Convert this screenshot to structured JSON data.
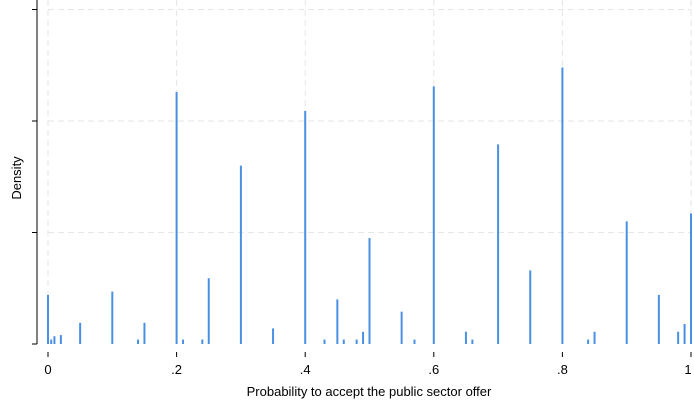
{
  "chart_data": {
    "type": "bar",
    "title": "",
    "xlabel": "Probability to accept the public sector offer",
    "ylabel": "Density",
    "xlim": [
      0,
      1
    ],
    "ylim": [
      0,
      30
    ],
    "x_ticks": [
      {
        "value": 0,
        "label": "0"
      },
      {
        "value": 0.2,
        "label": ".2"
      },
      {
        "value": 0.4,
        "label": ".4"
      },
      {
        "value": 0.6,
        "label": ".6"
      },
      {
        "value": 0.8,
        "label": ".8"
      },
      {
        "value": 1,
        "label": "1"
      }
    ],
    "y_ticks": [
      0,
      10,
      20,
      30
    ],
    "grid": true,
    "bar_color": "#4a90e2",
    "bars": [
      {
        "x": 0.0,
        "y": 4.4
      },
      {
        "x": 0.005,
        "y": 0.4
      },
      {
        "x": 0.01,
        "y": 0.7
      },
      {
        "x": 0.02,
        "y": 0.8
      },
      {
        "x": 0.05,
        "y": 1.9
      },
      {
        "x": 0.1,
        "y": 4.7
      },
      {
        "x": 0.14,
        "y": 0.4
      },
      {
        "x": 0.15,
        "y": 1.9
      },
      {
        "x": 0.2,
        "y": 22.6
      },
      {
        "x": 0.21,
        "y": 0.4
      },
      {
        "x": 0.24,
        "y": 0.4
      },
      {
        "x": 0.25,
        "y": 5.9
      },
      {
        "x": 0.3,
        "y": 16.0
      },
      {
        "x": 0.35,
        "y": 1.4
      },
      {
        "x": 0.4,
        "y": 20.9
      },
      {
        "x": 0.43,
        "y": 0.4
      },
      {
        "x": 0.45,
        "y": 4.0
      },
      {
        "x": 0.46,
        "y": 0.4
      },
      {
        "x": 0.48,
        "y": 0.4
      },
      {
        "x": 0.49,
        "y": 1.1
      },
      {
        "x": 0.5,
        "y": 9.5
      },
      {
        "x": 0.55,
        "y": 2.9
      },
      {
        "x": 0.57,
        "y": 0.4
      },
      {
        "x": 0.6,
        "y": 23.1
      },
      {
        "x": 0.65,
        "y": 1.1
      },
      {
        "x": 0.66,
        "y": 0.4
      },
      {
        "x": 0.7,
        "y": 17.9
      },
      {
        "x": 0.75,
        "y": 6.6
      },
      {
        "x": 0.8,
        "y": 24.8
      },
      {
        "x": 0.84,
        "y": 0.4
      },
      {
        "x": 0.85,
        "y": 1.1
      },
      {
        "x": 0.9,
        "y": 11.0
      },
      {
        "x": 0.95,
        "y": 4.4
      },
      {
        "x": 0.98,
        "y": 1.1
      },
      {
        "x": 0.99,
        "y": 1.8
      },
      {
        "x": 1.0,
        "y": 11.7
      }
    ]
  }
}
